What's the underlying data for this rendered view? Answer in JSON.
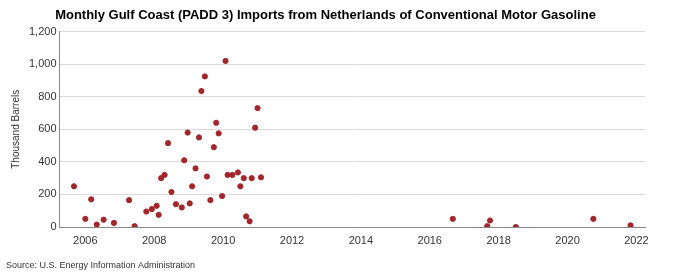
{
  "chart_data": {
    "type": "scatter",
    "title": "Monthly Gulf Coast (PADD 3) Imports from Netherlands of Conventional Motor Gasoline",
    "y_label": "Thousand Barrels",
    "source": "Source: U.S. Energy Information Administration",
    "x": [
      2005.67,
      2006.0,
      2006.17,
      2006.33,
      2006.53,
      2006.83,
      2007.27,
      2007.43,
      2007.77,
      2007.93,
      2008.07,
      2008.13,
      2008.2,
      2008.3,
      2008.4,
      2008.5,
      2008.63,
      2008.8,
      2008.87,
      2008.97,
      2009.03,
      2009.1,
      2009.2,
      2009.3,
      2009.37,
      2009.47,
      2009.53,
      2009.63,
      2009.73,
      2009.8,
      2009.87,
      2009.97,
      2010.07,
      2010.13,
      2010.27,
      2010.43,
      2010.5,
      2010.6,
      2010.67,
      2010.77,
      2010.83,
      2010.93,
      2011.0,
      2011.1,
      2016.67,
      2017.67,
      2017.75,
      2018.5,
      2020.75,
      2021.83
    ],
    "values": [
      250,
      50,
      170,
      15,
      45,
      25,
      165,
      5,
      95,
      110,
      130,
      75,
      300,
      320,
      515,
      215,
      140,
      120,
      410,
      580,
      145,
      250,
      360,
      550,
      835,
      925,
      310,
      165,
      490,
      640,
      575,
      190,
      1020,
      320,
      320,
      335,
      250,
      300,
      65,
      35,
      300,
      610,
      730,
      305,
      50,
      5,
      40,
      0,
      50,
      10
    ],
    "color": "#a3262a",
    "marker": "circle",
    "xlim": [
      2005.25,
      2022.25
    ],
    "xticks": [
      2006,
      2008,
      2010,
      2012,
      2014,
      2016,
      2018,
      2020,
      2022
    ],
    "ylim": [
      0,
      1200
    ],
    "yticks": [
      0,
      200,
      400,
      600,
      800,
      {
        "value": 1000,
        "label": "1,000"
      },
      {
        "value": 1200,
        "label": "1,200"
      }
    ],
    "grid": true
  }
}
